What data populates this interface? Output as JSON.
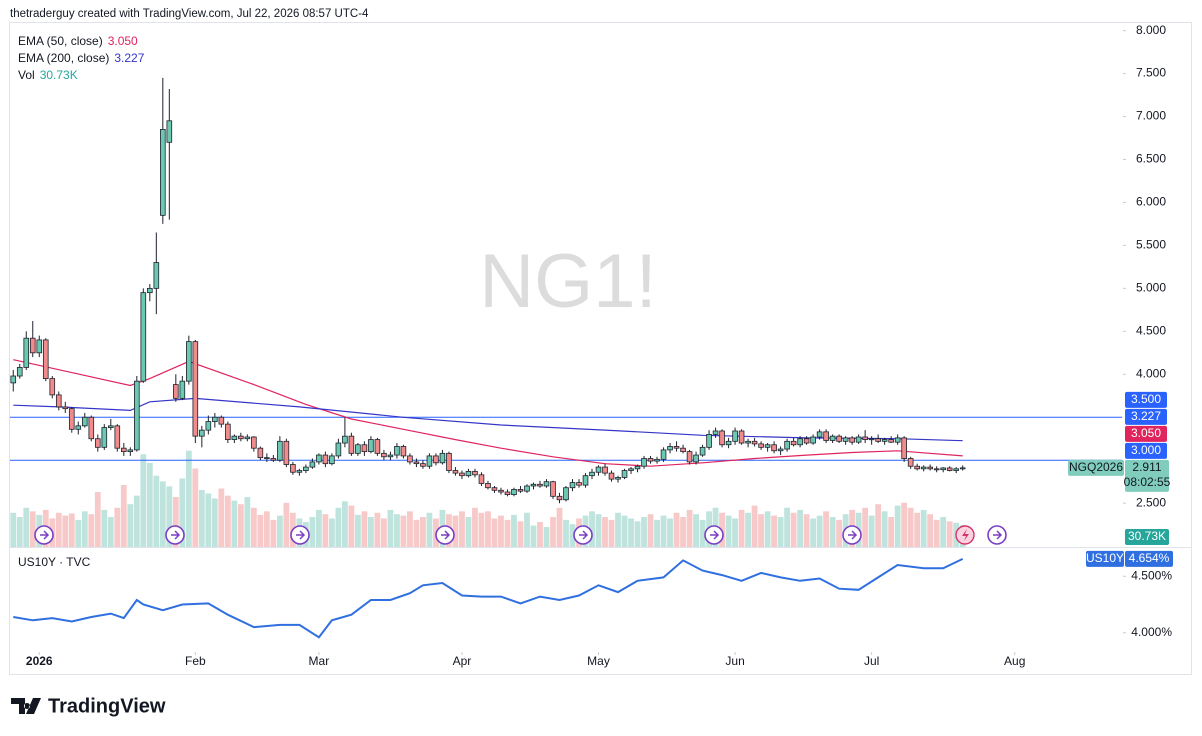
{
  "header": "thetraderguy created with TradingView.com, Jul 22, 2026 08:57 UTC-4",
  "footer_logo": "TradingView",
  "chart_data": {
    "type": "candlestick",
    "watermark": "NG1!",
    "symbol": "NGQ2026",
    "countdown": "08:02:55",
    "colors": {
      "up": "#6cc9b1",
      "down": "#f28b8b",
      "wick": "#1e222d",
      "vol_up": "#bfe3dd",
      "vol_down": "#f8c9c9",
      "level": "#2962ff",
      "price_badge": "#80cdbd"
    },
    "grid": false,
    "xlim": [
      -0.5,
      170.5
    ],
    "xticks": [
      {
        "value": 4,
        "label": "2026"
      },
      {
        "value": 28,
        "label": "Feb"
      },
      {
        "value": 47,
        "label": "Mar"
      },
      {
        "value": 69,
        "label": "Apr"
      },
      {
        "value": 90,
        "label": "May"
      },
      {
        "value": 111,
        "label": "Jun"
      },
      {
        "value": 132,
        "label": "Jul"
      },
      {
        "value": 154,
        "label": "Aug"
      }
    ],
    "ylim": [
      1.99,
      8.1
    ],
    "yticks": [
      {
        "value": 8,
        "label": "8.000"
      },
      {
        "value": 7.5,
        "label": "7.500"
      },
      {
        "value": 7,
        "label": "7.000"
      },
      {
        "value": 6.5,
        "label": "6.500"
      },
      {
        "value": 6,
        "label": "6.000"
      },
      {
        "value": 5.5,
        "label": "5.500"
      },
      {
        "value": 5,
        "label": "5.000"
      },
      {
        "value": 4.5,
        "label": "4.500"
      },
      {
        "value": 4,
        "label": "4.000"
      },
      {
        "value": 2.5,
        "label": "2.500"
      }
    ],
    "levels": [
      {
        "value": 3.5,
        "label": "3.500"
      },
      {
        "value": 3,
        "label": "3.000"
      }
    ],
    "ohlc": [
      [
        3.9,
        4.05,
        3.8,
        3.98
      ],
      [
        3.98,
        4.12,
        3.95,
        4.08
      ],
      [
        4.08,
        4.5,
        4.05,
        4.42
      ],
      [
        4.42,
        4.62,
        4.2,
        4.25
      ],
      [
        4.25,
        4.45,
        4.2,
        4.4
      ],
      [
        4.4,
        4.42,
        3.92,
        3.95
      ],
      [
        3.95,
        3.98,
        3.72,
        3.76
      ],
      [
        3.76,
        3.8,
        3.58,
        3.62
      ],
      [
        3.62,
        3.68,
        3.55,
        3.6
      ],
      [
        3.6,
        3.62,
        3.32,
        3.36
      ],
      [
        3.36,
        3.45,
        3.3,
        3.4
      ],
      [
        3.4,
        3.55,
        3.38,
        3.5
      ],
      [
        3.5,
        3.52,
        3.22,
        3.25
      ],
      [
        3.25,
        3.3,
        3.1,
        3.15
      ],
      [
        3.15,
        3.42,
        3.12,
        3.38
      ],
      [
        3.38,
        3.48,
        3.35,
        3.4
      ],
      [
        3.4,
        3.42,
        3.1,
        3.14
      ],
      [
        3.14,
        3.2,
        3.05,
        3.1
      ],
      [
        3.1,
        3.15,
        3.05,
        3.12
      ],
      [
        3.12,
        3.98,
        3.1,
        3.92
      ],
      [
        3.92,
        5.0,
        3.9,
        4.95
      ],
      [
        4.95,
        5.05,
        4.85,
        5.0
      ],
      [
        5.0,
        5.65,
        4.7,
        5.3
      ],
      [
        5.85,
        7.45,
        5.75,
        6.85
      ],
      [
        6.7,
        7.32,
        5.8,
        6.95
      ],
      [
        3.88,
        4.0,
        3.68,
        3.72
      ],
      [
        3.72,
        3.98,
        3.7,
        3.92
      ],
      [
        3.92,
        4.45,
        3.88,
        4.38
      ],
      [
        4.38,
        4.4,
        3.2,
        3.28
      ],
      [
        3.28,
        3.4,
        3.15,
        3.35
      ],
      [
        3.35,
        3.52,
        3.3,
        3.45
      ],
      [
        3.45,
        3.55,
        3.38,
        3.5
      ],
      [
        3.5,
        3.52,
        3.38,
        3.42
      ],
      [
        3.42,
        3.45,
        3.2,
        3.24
      ],
      [
        3.24,
        3.3,
        3.2,
        3.28
      ],
      [
        3.28,
        3.32,
        3.22,
        3.25
      ],
      [
        3.25,
        3.3,
        3.22,
        3.27
      ],
      [
        3.27,
        3.28,
        3.1,
        3.14
      ],
      [
        3.14,
        3.16,
        3.0,
        3.03
      ],
      [
        3.03,
        3.08,
        2.98,
        3.02
      ],
      [
        3.02,
        3.06,
        2.98,
        3.0
      ],
      [
        3.0,
        3.28,
        2.98,
        3.22
      ],
      [
        3.22,
        3.25,
        2.92,
        2.95
      ],
      [
        2.95,
        2.98,
        2.83,
        2.86
      ],
      [
        2.86,
        2.9,
        2.82,
        2.88
      ],
      [
        2.88,
        2.95,
        2.85,
        2.92
      ],
      [
        2.92,
        3.02,
        2.9,
        2.98
      ],
      [
        2.98,
        3.08,
        2.95,
        3.06
      ],
      [
        3.06,
        3.1,
        2.92,
        2.96
      ],
      [
        2.96,
        3.08,
        2.94,
        3.05
      ],
      [
        3.05,
        3.25,
        3.02,
        3.2
      ],
      [
        3.2,
        3.5,
        3.15,
        3.28
      ],
      [
        3.28,
        3.32,
        3.05,
        3.08
      ],
      [
        3.08,
        3.2,
        3.05,
        3.18
      ],
      [
        3.18,
        3.22,
        3.05,
        3.1
      ],
      [
        3.1,
        3.28,
        3.08,
        3.24
      ],
      [
        3.24,
        3.26,
        3.05,
        3.08
      ],
      [
        3.08,
        3.12,
        3.0,
        3.04
      ],
      [
        3.04,
        3.1,
        3.0,
        3.06
      ],
      [
        3.06,
        3.2,
        3.02,
        3.16
      ],
      [
        3.16,
        3.18,
        3.02,
        3.05
      ],
      [
        3.05,
        3.08,
        2.95,
        2.98
      ],
      [
        2.98,
        3.02,
        2.92,
        2.96
      ],
      [
        2.96,
        3.0,
        2.9,
        2.93
      ],
      [
        2.93,
        3.08,
        2.9,
        3.05
      ],
      [
        3.05,
        3.08,
        2.94,
        2.97
      ],
      [
        2.97,
        3.12,
        2.95,
        3.08
      ],
      [
        3.08,
        3.1,
        2.85,
        2.88
      ],
      [
        2.88,
        2.92,
        2.82,
        2.85
      ],
      [
        2.85,
        2.88,
        2.78,
        2.82
      ],
      [
        2.82,
        2.9,
        2.8,
        2.87
      ],
      [
        2.87,
        2.9,
        2.8,
        2.83
      ],
      [
        2.83,
        2.86,
        2.7,
        2.73
      ],
      [
        2.73,
        2.76,
        2.66,
        2.68
      ],
      [
        2.68,
        2.7,
        2.62,
        2.65
      ],
      [
        2.65,
        2.68,
        2.6,
        2.63
      ],
      [
        2.63,
        2.66,
        2.58,
        2.6
      ],
      [
        2.6,
        2.68,
        2.58,
        2.66
      ],
      [
        2.66,
        2.7,
        2.62,
        2.64
      ],
      [
        2.64,
        2.72,
        2.62,
        2.7
      ],
      [
        2.7,
        2.74,
        2.66,
        2.72
      ],
      [
        2.72,
        2.76,
        2.68,
        2.7
      ],
      [
        2.7,
        2.78,
        2.68,
        2.75
      ],
      [
        2.75,
        2.76,
        2.55,
        2.58
      ],
      [
        2.58,
        2.62,
        2.5,
        2.54
      ],
      [
        2.54,
        2.7,
        2.52,
        2.68
      ],
      [
        2.68,
        2.78,
        2.64,
        2.74
      ],
      [
        2.74,
        2.78,
        2.68,
        2.71
      ],
      [
        2.71,
        2.85,
        2.68,
        2.82
      ],
      [
        2.82,
        2.9,
        2.78,
        2.86
      ],
      [
        2.86,
        2.94,
        2.82,
        2.92
      ],
      [
        2.92,
        2.96,
        2.82,
        2.85
      ],
      [
        2.85,
        2.88,
        2.75,
        2.78
      ],
      [
        2.78,
        2.82,
        2.74,
        2.8
      ],
      [
        2.8,
        2.9,
        2.78,
        2.88
      ],
      [
        2.88,
        2.92,
        2.84,
        2.9
      ],
      [
        2.9,
        2.95,
        2.86,
        2.93
      ],
      [
        2.93,
        3.05,
        2.9,
        3.02
      ],
      [
        3.02,
        3.05,
        2.96,
        2.99
      ],
      [
        2.99,
        3.04,
        2.96,
        3.01
      ],
      [
        3.01,
        3.15,
        2.98,
        3.12
      ],
      [
        3.12,
        3.2,
        3.08,
        3.16
      ],
      [
        3.16,
        3.22,
        3.1,
        3.14
      ],
      [
        3.14,
        3.18,
        3.08,
        3.1
      ],
      [
        3.1,
        3.12,
        2.95,
        2.98
      ],
      [
        2.98,
        3.1,
        2.95,
        3.06
      ],
      [
        3.06,
        3.18,
        3.04,
        3.15
      ],
      [
        3.15,
        3.35,
        3.12,
        3.3
      ],
      [
        3.3,
        3.38,
        3.26,
        3.34
      ],
      [
        3.34,
        3.36,
        3.15,
        3.18
      ],
      [
        3.18,
        3.26,
        3.14,
        3.22
      ],
      [
        3.22,
        3.38,
        3.18,
        3.34
      ],
      [
        3.34,
        3.36,
        3.18,
        3.2
      ],
      [
        3.2,
        3.25,
        3.15,
        3.22
      ],
      [
        3.22,
        3.26,
        3.16,
        3.19
      ],
      [
        3.19,
        3.22,
        3.12,
        3.15
      ],
      [
        3.15,
        3.2,
        3.1,
        3.18
      ],
      [
        3.18,
        3.22,
        3.08,
        3.11
      ],
      [
        3.11,
        3.16,
        3.06,
        3.13
      ],
      [
        3.13,
        3.25,
        3.1,
        3.22
      ],
      [
        3.22,
        3.26,
        3.16,
        3.18
      ],
      [
        3.18,
        3.28,
        3.15,
        3.25
      ],
      [
        3.25,
        3.28,
        3.18,
        3.2
      ],
      [
        3.2,
        3.3,
        3.18,
        3.27
      ],
      [
        3.27,
        3.36,
        3.24,
        3.33
      ],
      [
        3.33,
        3.36,
        3.2,
        3.23
      ],
      [
        3.23,
        3.3,
        3.2,
        3.28
      ],
      [
        3.28,
        3.3,
        3.2,
        3.22
      ],
      [
        3.22,
        3.28,
        3.18,
        3.26
      ],
      [
        3.26,
        3.28,
        3.18,
        3.21
      ],
      [
        3.21,
        3.3,
        3.19,
        3.27
      ],
      [
        3.27,
        3.35,
        3.2,
        3.24
      ],
      [
        3.24,
        3.28,
        3.18,
        3.25
      ],
      [
        3.25,
        3.3,
        3.2,
        3.22
      ],
      [
        3.22,
        3.26,
        3.18,
        3.24
      ],
      [
        3.24,
        3.28,
        3.2,
        3.21
      ],
      [
        3.21,
        3.3,
        3.18,
        3.26
      ],
      [
        3.26,
        3.28,
        2.98,
        3.02
      ],
      [
        3.02,
        3.04,
        2.9,
        2.93
      ],
      [
        2.93,
        2.96,
        2.88,
        2.9
      ],
      [
        2.9,
        2.94,
        2.87,
        2.92
      ],
      [
        2.92,
        2.95,
        2.88,
        2.9
      ],
      [
        2.9,
        2.93,
        2.86,
        2.89
      ],
      [
        2.89,
        2.92,
        2.86,
        2.91
      ],
      [
        2.91,
        2.93,
        2.87,
        2.88
      ],
      [
        2.88,
        2.92,
        2.85,
        2.9
      ],
      [
        2.9,
        2.94,
        2.88,
        2.911
      ]
    ],
    "series": [
      {
        "name": "EMA (50, close)",
        "color": "#e0245e",
        "last_label": "3.050",
        "x": [
          0,
          9,
          18,
          21,
          27,
          37,
          45,
          52,
          60,
          68,
          75,
          83,
          91,
          98,
          106,
          114,
          122,
          129,
          136,
          146
        ],
        "values": [
          4.17,
          4.02,
          3.87,
          3.95,
          4.15,
          3.88,
          3.65,
          3.48,
          3.36,
          3.24,
          3.14,
          3.04,
          2.96,
          2.93,
          2.97,
          3.02,
          3.06,
          3.09,
          3.11,
          3.05
        ]
      },
      {
        "name": "EMA (200, close)",
        "color": "#3535c8",
        "last_label": "3.227",
        "x": [
          0,
          7,
          18,
          21,
          28,
          44,
          60,
          75,
          91,
          106,
          122,
          136,
          146
        ],
        "values": [
          3.64,
          3.62,
          3.58,
          3.68,
          3.72,
          3.62,
          3.5,
          3.41,
          3.35,
          3.29,
          3.26,
          3.25,
          3.227
        ]
      },
      {
        "name": "Vol",
        "type": "bar",
        "color": "#26a69a",
        "last_label": "30.73K",
        "lim": [
          0,
          150
        ],
        "values": [
          48,
          42,
          55,
          50,
          45,
          52,
          40,
          48,
          44,
          47,
          38,
          50,
          46,
          77,
          52,
          42,
          55,
          87,
          60,
          72,
          130,
          118,
          100,
          92,
          85,
          70,
          96,
          135,
          110,
          80,
          75,
          68,
          82,
          72,
          65,
          60,
          70,
          55,
          45,
          50,
          38,
          44,
          62,
          48,
          40,
          35,
          42,
          52,
          46,
          40,
          55,
          64,
          58,
          45,
          50,
          42,
          48,
          40,
          52,
          46,
          44,
          50,
          38,
          42,
          48,
          40,
          52,
          46,
          44,
          50,
          42,
          55,
          48,
          50,
          40,
          44,
          38,
          45,
          36,
          48,
          30,
          35,
          28,
          42,
          55,
          38,
          32,
          40,
          44,
          50,
          46,
          42,
          38,
          48,
          44,
          40,
          36,
          42,
          46,
          38,
          44,
          40,
          48,
          42,
          52,
          46,
          38,
          50,
          55,
          48,
          44,
          40,
          52,
          48,
          58,
          46,
          50,
          44,
          42,
          55,
          48,
          52,
          46,
          40,
          44,
          50,
          42,
          38,
          46,
          52,
          48,
          55,
          44,
          60,
          50,
          42,
          58,
          62,
          55,
          48,
          52,
          46,
          38,
          42,
          36,
          34,
          30.73
        ]
      },
      {
        "name": "US10Y · TVC",
        "short": "US10Y",
        "axis": "y2",
        "color": "#2f6fe0",
        "last_label": "4.654%",
        "x": [
          0,
          3,
          6,
          9,
          12,
          15,
          17,
          19,
          20,
          23,
          26,
          30,
          33,
          37,
          41,
          44,
          47,
          49,
          52,
          55,
          58,
          61,
          63,
          66,
          69,
          72,
          75,
          78,
          81,
          84,
          87,
          90,
          93,
          96,
          100,
          103,
          106,
          109,
          112,
          115,
          118,
          121,
          124,
          127,
          130,
          133,
          136,
          140,
          143,
          146
        ],
        "values": [
          4.14,
          4.11,
          4.13,
          4.1,
          4.14,
          4.17,
          4.13,
          4.29,
          4.25,
          4.2,
          4.25,
          4.26,
          4.16,
          4.05,
          4.07,
          4.07,
          3.96,
          4.11,
          4.16,
          4.29,
          4.29,
          4.35,
          4.42,
          4.44,
          4.33,
          4.32,
          4.32,
          4.26,
          4.32,
          4.29,
          4.33,
          4.42,
          4.36,
          4.46,
          4.49,
          4.64,
          4.55,
          4.51,
          4.46,
          4.53,
          4.49,
          4.46,
          4.48,
          4.39,
          4.38,
          4.49,
          4.6,
          4.57,
          4.57,
          4.654
        ]
      }
    ],
    "y2lim": [
      3.83,
      4.75
    ],
    "y2ticks": [
      {
        "value": 4.5,
        "label": "4.500%"
      },
      {
        "value": 4,
        "label": "4.000%"
      }
    ]
  }
}
